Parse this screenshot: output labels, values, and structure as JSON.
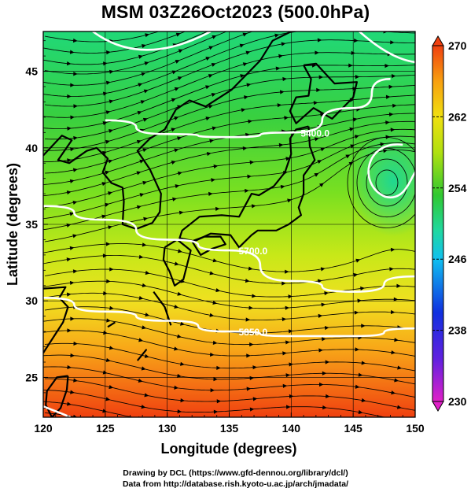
{
  "title": "MSM 03Z26Oct2023 (500.0hPa)",
  "xaxis": {
    "label": "Longitude (degrees)",
    "ticks": [
      120,
      125,
      130,
      135,
      140,
      145,
      150
    ],
    "range": [
      120,
      150
    ]
  },
  "yaxis": {
    "label": "Latitude  (degrees)",
    "ticks": [
      25,
      30,
      35,
      40,
      45
    ],
    "range": [
      22.4,
      47.6
    ]
  },
  "colorbar": {
    "ticks": [
      230,
      238,
      246,
      254,
      262,
      270
    ],
    "range": [
      230,
      270
    ],
    "colors": [
      "#e020c8",
      "#6020e0",
      "#1030e0",
      "#10c0f0",
      "#20d8a0",
      "#30c830",
      "#b0e010",
      "#f0e010",
      "#f8a010",
      "#f04010"
    ]
  },
  "contours": [
    {
      "label": "5400.0",
      "lat_at_lon": [
        [
          125,
          41.8
        ],
        [
          130,
          40.9
        ],
        [
          135,
          40.7
        ],
        [
          140,
          41.0
        ],
        [
          145,
          42.6
        ],
        [
          148,
          44.5
        ]
      ]
    },
    {
      "label": "5700.0",
      "lat_at_lon": [
        [
          120,
          36.2
        ],
        [
          125,
          35.3
        ],
        [
          130,
          34.0
        ],
        [
          135,
          33.3
        ],
        [
          140,
          31.3
        ],
        [
          145,
          30.6
        ],
        [
          150,
          31.6
        ]
      ]
    },
    {
      "label": "5850.0",
      "lat_at_lon": [
        [
          120,
          30.2
        ],
        [
          125,
          29.3
        ],
        [
          130,
          28.7
        ],
        [
          135,
          28.0
        ],
        [
          140,
          27.7
        ],
        [
          145,
          27.7
        ],
        [
          150,
          28.2
        ]
      ]
    }
  ],
  "credits": [
    "Drawing by DCL (https://www.gfd-dennou.org/library/dcl/)",
    "Data from http://database.rish.kyoto-u.ac.jp/arch/jmadata/"
  ]
}
